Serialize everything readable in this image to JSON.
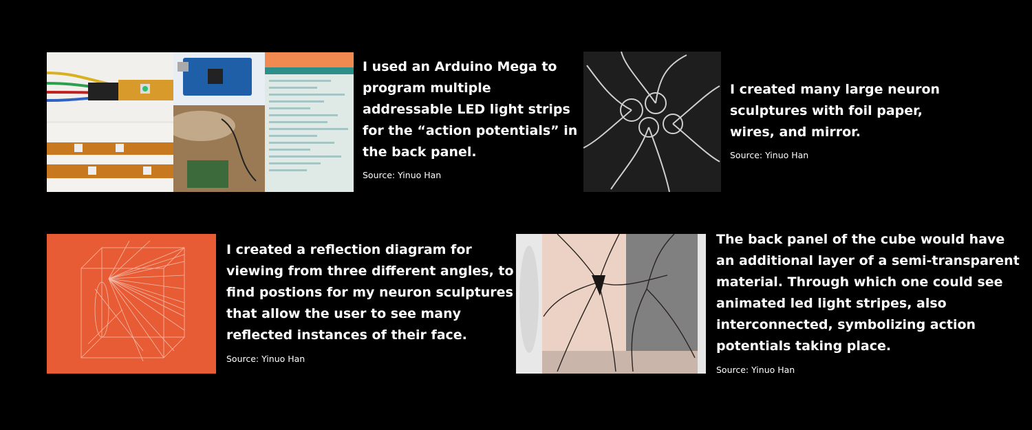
{
  "blocks": [
    {
      "caption_lines": [
        "I used an Arduino Mega to",
        "program multiple",
        "addressable LED light strips",
        "for the “action potentials” in",
        "the back panel."
      ],
      "source": "Source: Yinuo Han"
    },
    {
      "caption_lines": [
        "I created many large neuron",
        "sculptures with foil paper,",
        "wires, and mirror."
      ],
      "source": "Source: Yinuo Han"
    },
    {
      "caption_lines": [
        "I created a reflection diagram for",
        "viewing from three different angles, to",
        "find postions for my neuron sculptures",
        "that allow the user to see many",
        "reflected instances of their face."
      ],
      "source": "Source: Yinuo Han"
    },
    {
      "caption_lines": [
        "The back panel of the cube would have",
        "an additional layer of a semi-transparent",
        "material. Through which one could see",
        "animated led light stripes, also",
        "interconnected, symbolizing action",
        "potentials taking place."
      ],
      "source": "Source: Yinuo Han"
    }
  ],
  "colors": {
    "background": "#000000",
    "diagram_orange": "#e85c35",
    "text": "#ffffff"
  }
}
